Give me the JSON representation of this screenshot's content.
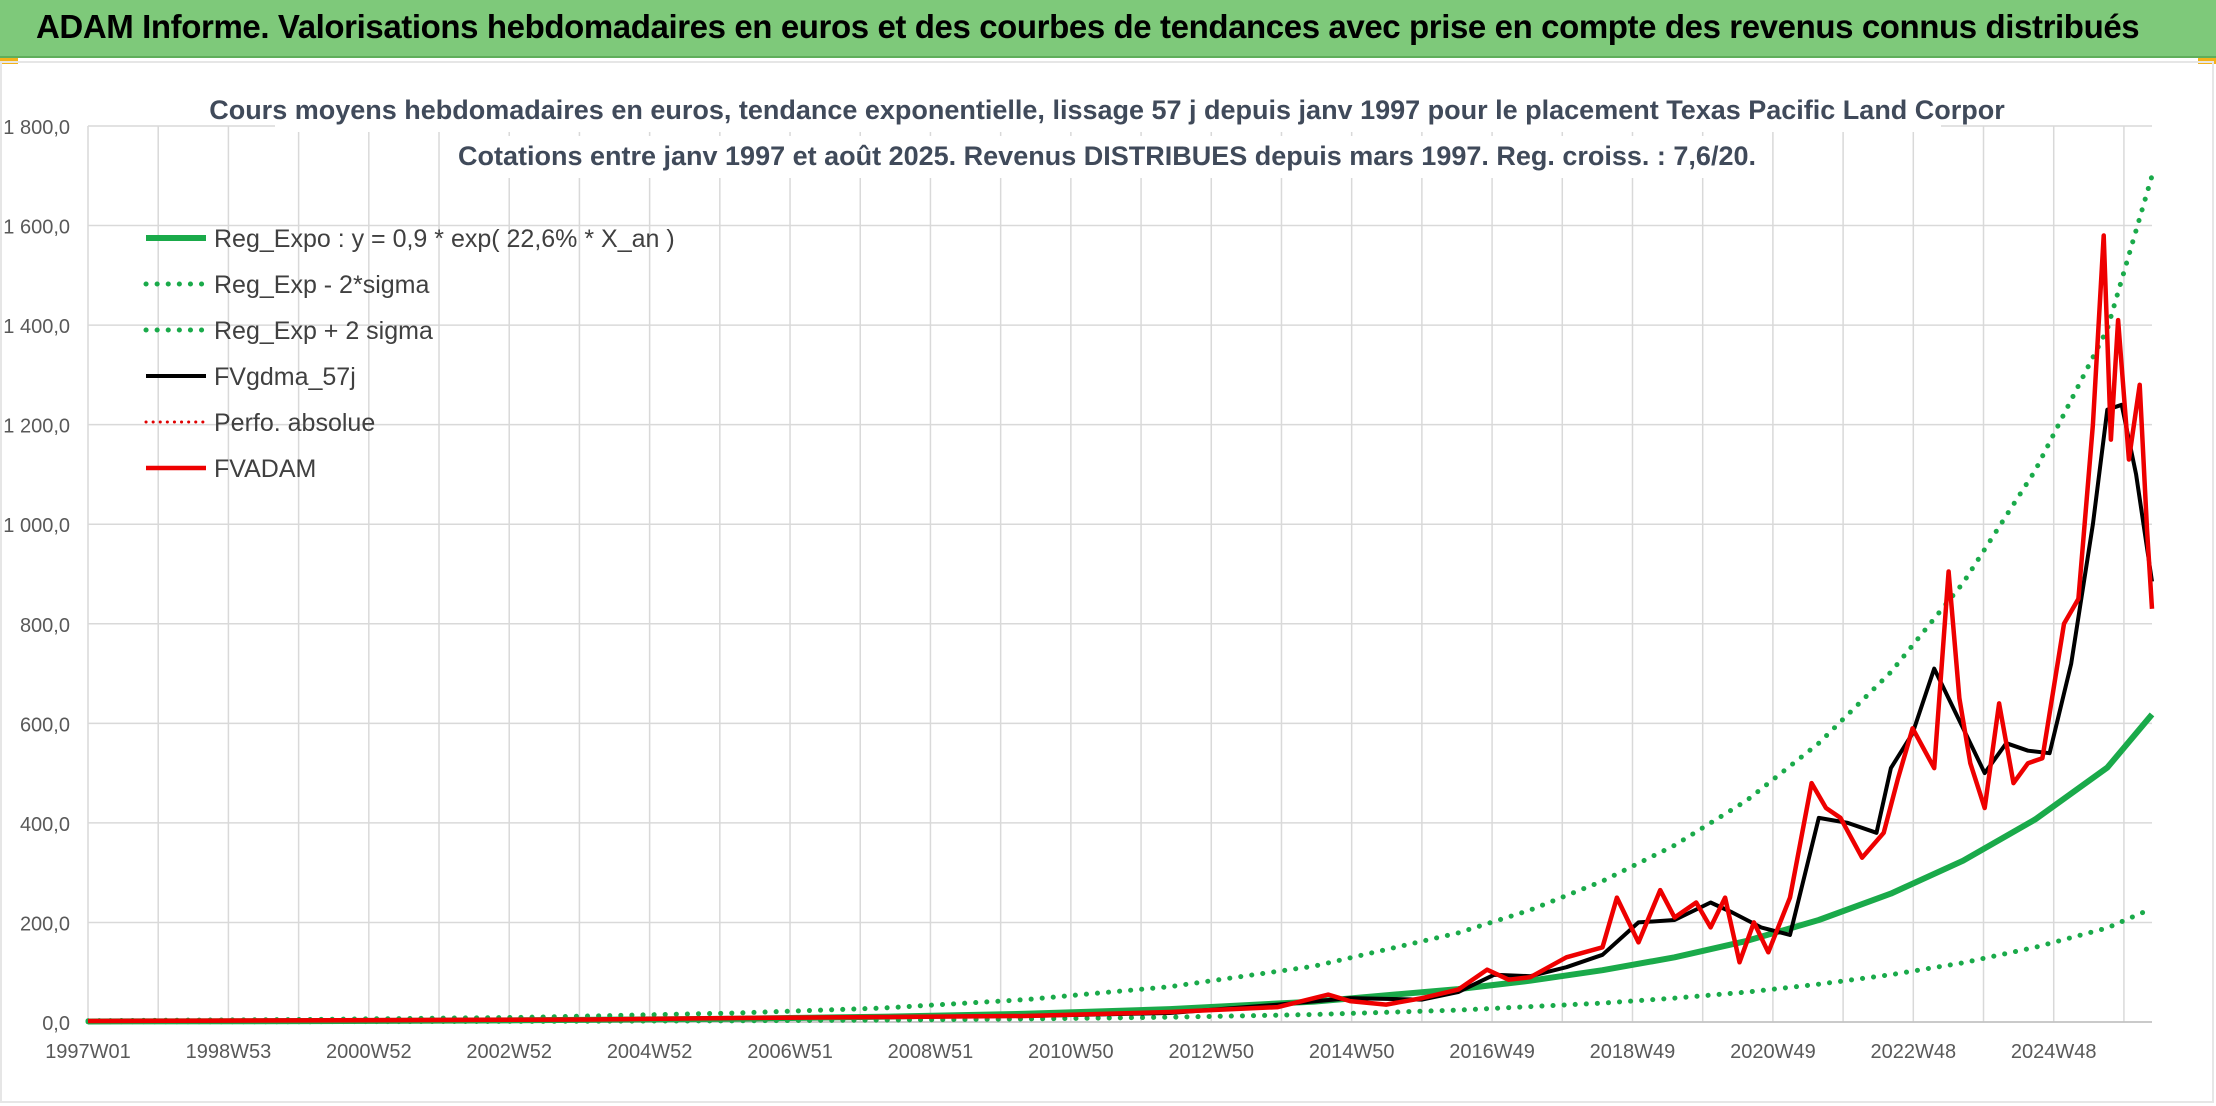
{
  "banner": {
    "title": "ADAM Informe. Valorisations hebdomadaires en euros et des courbes de tendances avec prise en compte des revenus connus distribués"
  },
  "chart_data": {
    "type": "line",
    "title": "Cours moyens hebdomadaires en euros, tendance exponentielle, lissage 57 j depuis janv 1997 pour le placement Texas Pacific Land Corpor",
    "subtitle": "Cotations entre janv 1997 et août 2025. Revenus DISTRIBUES depuis mars 1997. Reg. croiss. : 7,6/20.",
    "xlabel": "",
    "ylabel": "",
    "x_range": [
      1997.0,
      2025.62
    ],
    "ylim": [
      0,
      1800
    ],
    "y_ticks": [
      "0,0",
      "200,0",
      "400,0",
      "600,0",
      "800,0",
      "1 000,0",
      "1 200,0",
      "1 400,0",
      "1 600,0",
      "1 800,0"
    ],
    "x_ticks": [
      "1997W01",
      "1998W53",
      "2000W52",
      "2002W52",
      "2004W52",
      "2006W51",
      "2008W51",
      "2010W50",
      "2012W50",
      "2014W50",
      "2016W49",
      "2018W49",
      "2020W49",
      "2022W48",
      "2024W48"
    ],
    "grid": true,
    "legend_position": "top-left",
    "colors": {
      "reg_expo": "#1aaa4a",
      "sigma": "#1aaa4a",
      "fvgdma": "#000000",
      "perfo": "#e00000",
      "fvadam": "#ee0000",
      "grid": "#d9d9d9",
      "axis_text": "#595959",
      "title_text": "#404a5a"
    },
    "series": [
      {
        "name": "Reg_Expo : y = 0,9 * exp( 22,6% *  X_an )",
        "style": "solid-thick",
        "x": [
          1997.0,
          2000.0,
          2003.0,
          2006.0,
          2008.0,
          2010.0,
          2012.0,
          2014.0,
          2016.0,
          2017.0,
          2018.0,
          2019.0,
          2020.0,
          2021.0,
          2022.0,
          2023.0,
          2024.0,
          2025.0,
          2025.62
        ],
        "y": [
          1.0,
          1.8,
          3.4,
          6.7,
          10.5,
          16.5,
          26,
          41,
          66,
          83,
          104,
          130,
          163,
          205,
          258,
          324,
          407,
          511,
          618
        ]
      },
      {
        "name": "Reg_Exp - 2*sigma",
        "style": "dotted",
        "x": [
          1997.0,
          2000.0,
          2003.0,
          2006.0,
          2008.0,
          2010.0,
          2012.0,
          2014.0,
          2016.0,
          2017.0,
          2018.0,
          2019.0,
          2020.0,
          2021.0,
          2022.0,
          2023.0,
          2024.0,
          2025.0,
          2025.62
        ],
        "y": [
          0.4,
          0.7,
          1.3,
          2.5,
          3.9,
          6.1,
          9.7,
          15,
          24,
          31,
          38,
          48,
          60,
          76,
          95,
          119,
          150,
          189,
          228
        ]
      },
      {
        "name": "Reg_Exp + 2 sigma",
        "style": "dotted",
        "x": [
          1997.0,
          2000.0,
          2003.0,
          2006.0,
          2008.0,
          2010.0,
          2012.0,
          2014.0,
          2016.0,
          2017.0,
          2018.0,
          2019.0,
          2020.0,
          2021.0,
          2022.0,
          2023.0,
          2024.0,
          2025.0,
          2025.62
        ],
        "y": [
          2.7,
          5.0,
          9.3,
          18,
          28,
          45,
          71,
          112,
          179,
          225,
          283,
          355,
          445,
          560,
          703,
          882,
          1108,
          1392,
          1700
        ]
      },
      {
        "name": "FVgdma_57j",
        "style": "solid",
        "x": [
          1997.0,
          2004.0,
          2006.0,
          2008.0,
          2010.0,
          2012.0,
          2013.5,
          2014.5,
          2015.5,
          2016.0,
          2016.5,
          2017.0,
          2017.5,
          2018.0,
          2018.5,
          2019.0,
          2019.5,
          2019.8,
          2020.2,
          2020.6,
          2021.0,
          2021.4,
          2021.8,
          2022.0,
          2022.3,
          2022.6,
          2023.0,
          2023.3,
          2023.6,
          2023.9,
          2024.2,
          2024.5,
          2024.8,
          2025.0,
          2025.2,
          2025.4,
          2025.62
        ],
        "y": [
          2,
          5,
          8,
          10,
          12,
          18,
          35,
          48,
          45,
          60,
          95,
          92,
          110,
          135,
          200,
          205,
          240,
          220,
          190,
          175,
          410,
          400,
          380,
          510,
          580,
          710,
          590,
          500,
          560,
          545,
          540,
          720,
          1000,
          1230,
          1240,
          1100,
          885
        ]
      },
      {
        "name": "Perfo. absolue",
        "style": "dotted",
        "x": [],
        "y": []
      },
      {
        "name": "FVADAM",
        "style": "solid-thick",
        "x": [
          1997.0,
          2004.0,
          2006.0,
          2008.0,
          2010.0,
          2012.0,
          2013.5,
          2014.2,
          2014.5,
          2015.0,
          2015.5,
          2016.0,
          2016.4,
          2016.7,
          2017.0,
          2017.5,
          2018.0,
          2018.2,
          2018.5,
          2018.8,
          2019.0,
          2019.3,
          2019.5,
          2019.7,
          2019.9,
          2020.1,
          2020.3,
          2020.6,
          2020.9,
          2021.1,
          2021.3,
          2021.6,
          2021.9,
          2022.1,
          2022.3,
          2022.6,
          2022.8,
          2022.95,
          2023.1,
          2023.3,
          2023.5,
          2023.7,
          2023.9,
          2024.1,
          2024.4,
          2024.6,
          2024.8,
          2024.95,
          2025.05,
          2025.15,
          2025.3,
          2025.45,
          2025.55,
          2025.62
        ],
        "y": [
          2,
          5,
          8,
          10,
          12,
          20,
          30,
          55,
          42,
          35,
          48,
          65,
          105,
          85,
          90,
          130,
          150,
          250,
          160,
          265,
          210,
          240,
          190,
          250,
          120,
          200,
          140,
          250,
          480,
          430,
          410,
          330,
          380,
          490,
          590,
          510,
          905,
          650,
          520,
          430,
          640,
          480,
          520,
          530,
          800,
          850,
          1200,
          1580,
          1170,
          1410,
          1130,
          1280,
          990,
          830
        ]
      }
    ]
  }
}
